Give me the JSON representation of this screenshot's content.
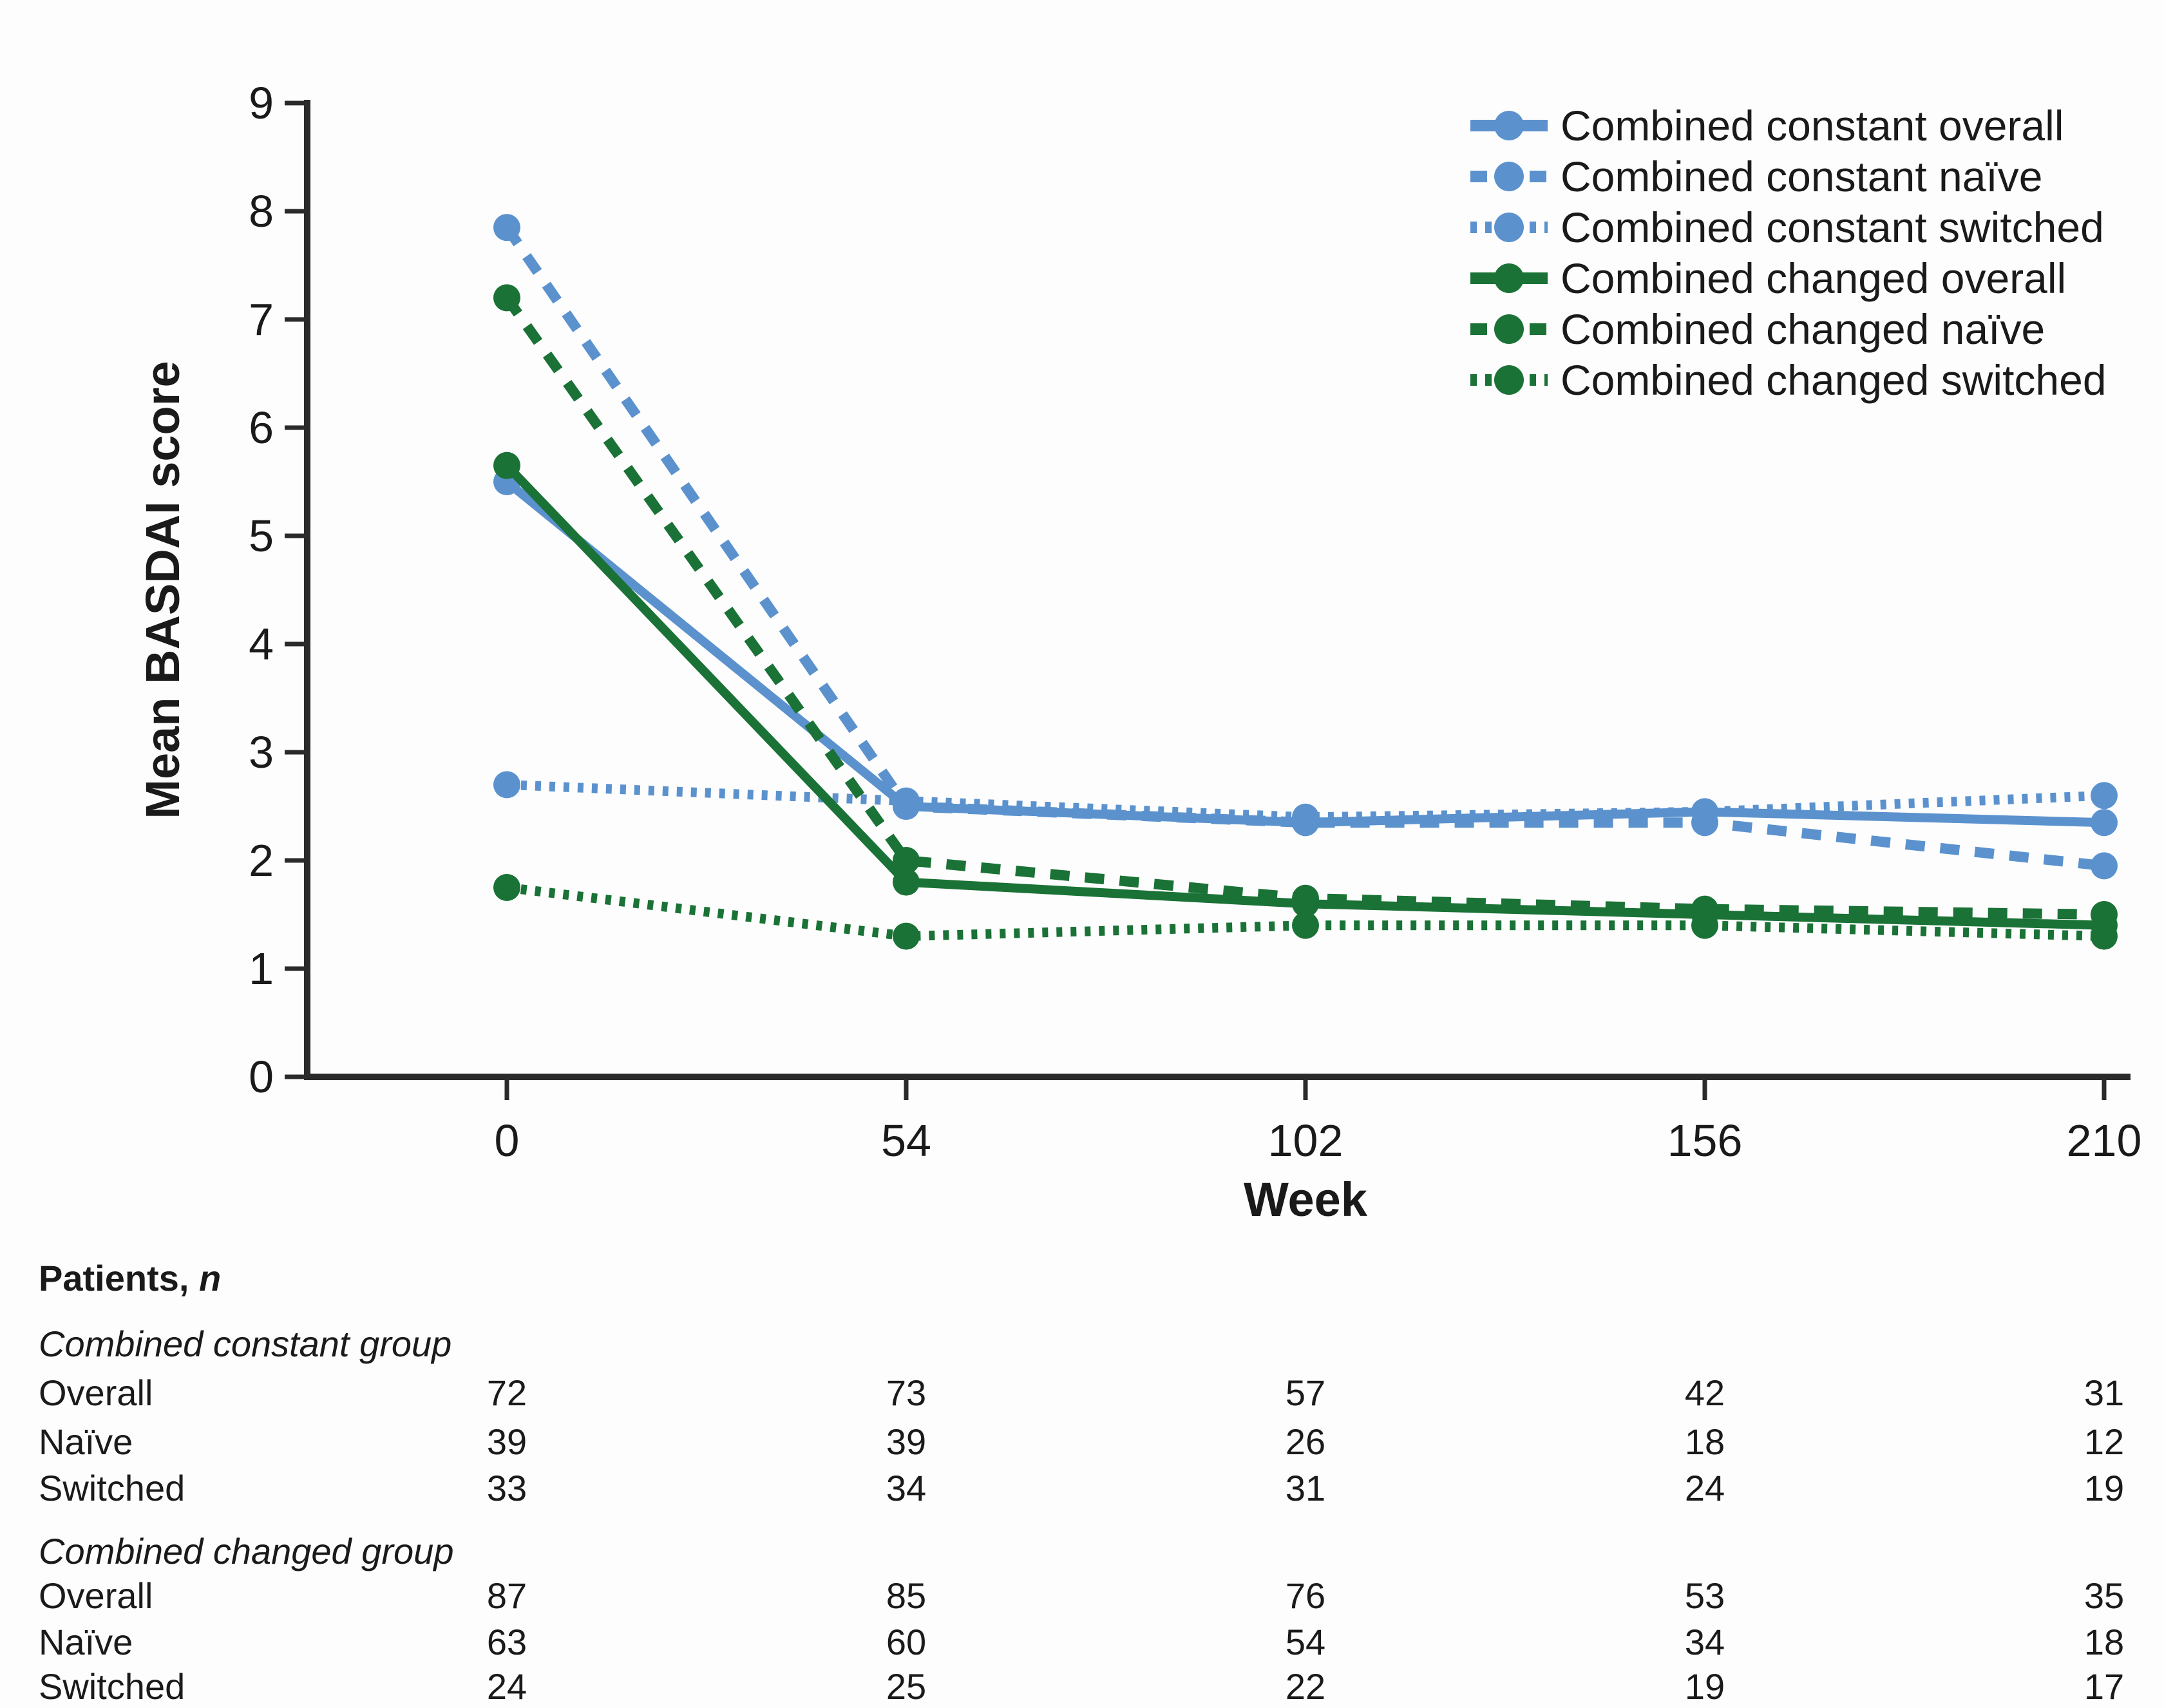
{
  "chart_data": {
    "type": "line",
    "title": "",
    "xlabel": "Week",
    "ylabel": "Mean BASDAI score",
    "x": [
      0,
      54,
      102,
      156,
      210
    ],
    "x_spacing": "categorical-even",
    "ylim": [
      0,
      9
    ],
    "y_ticks": [
      0,
      1,
      2,
      3,
      4,
      5,
      6,
      7,
      8,
      9
    ],
    "grid": "off",
    "legend_position": "top-right",
    "colors": {
      "constant_blue": "#5b92ce",
      "changed_green": "#1a7236"
    },
    "series": [
      {
        "name": "Combined constant overall",
        "color": "#5b92ce",
        "style": "solid",
        "values": [
          5.5,
          2.5,
          2.35,
          2.45,
          2.35
        ]
      },
      {
        "name": "Combined constant naïve",
        "color": "#5b92ce",
        "style": "dashed",
        "values": [
          7.85,
          2.5,
          2.35,
          2.35,
          1.95
        ]
      },
      {
        "name": "Combined constant switched",
        "color": "#5b92ce",
        "style": "dotted",
        "values": [
          2.7,
          2.55,
          2.4,
          2.45,
          2.6
        ]
      },
      {
        "name": "Combined changed overall",
        "color": "#1a7236",
        "style": "solid",
        "values": [
          5.65,
          1.8,
          1.6,
          1.5,
          1.4
        ]
      },
      {
        "name": "Combined changed naïve",
        "color": "#1a7236",
        "style": "dashed",
        "values": [
          7.2,
          2.0,
          1.65,
          1.55,
          1.5
        ]
      },
      {
        "name": "Combined changed switched",
        "color": "#1a7236",
        "style": "dotted",
        "values": [
          1.75,
          1.3,
          1.4,
          1.4,
          1.3
        ]
      }
    ]
  },
  "table": {
    "title_prefix": "Patients, ",
    "title_italic": "n",
    "groups": [
      {
        "label": "Combined constant group",
        "rows": [
          {
            "label": "Overall",
            "values": [
              "72",
              "73",
              "57",
              "42",
              "31"
            ]
          },
          {
            "label": "Naïve",
            "values": [
              "39",
              "39",
              "26",
              "18",
              "12"
            ]
          },
          {
            "label": "Switched",
            "values": [
              "33",
              "34",
              "31",
              "24",
              "19"
            ]
          }
        ]
      },
      {
        "label": "Combined changed group",
        "rows": [
          {
            "label": "Overall",
            "values": [
              "87",
              "85",
              "76",
              "53",
              "35"
            ]
          },
          {
            "label": "Naïve",
            "values": [
              "63",
              "60",
              "54",
              "34",
              "18"
            ]
          },
          {
            "label": "Switched",
            "values": [
              "24",
              "25",
              "22",
              "19",
              "17"
            ]
          }
        ]
      }
    ]
  }
}
